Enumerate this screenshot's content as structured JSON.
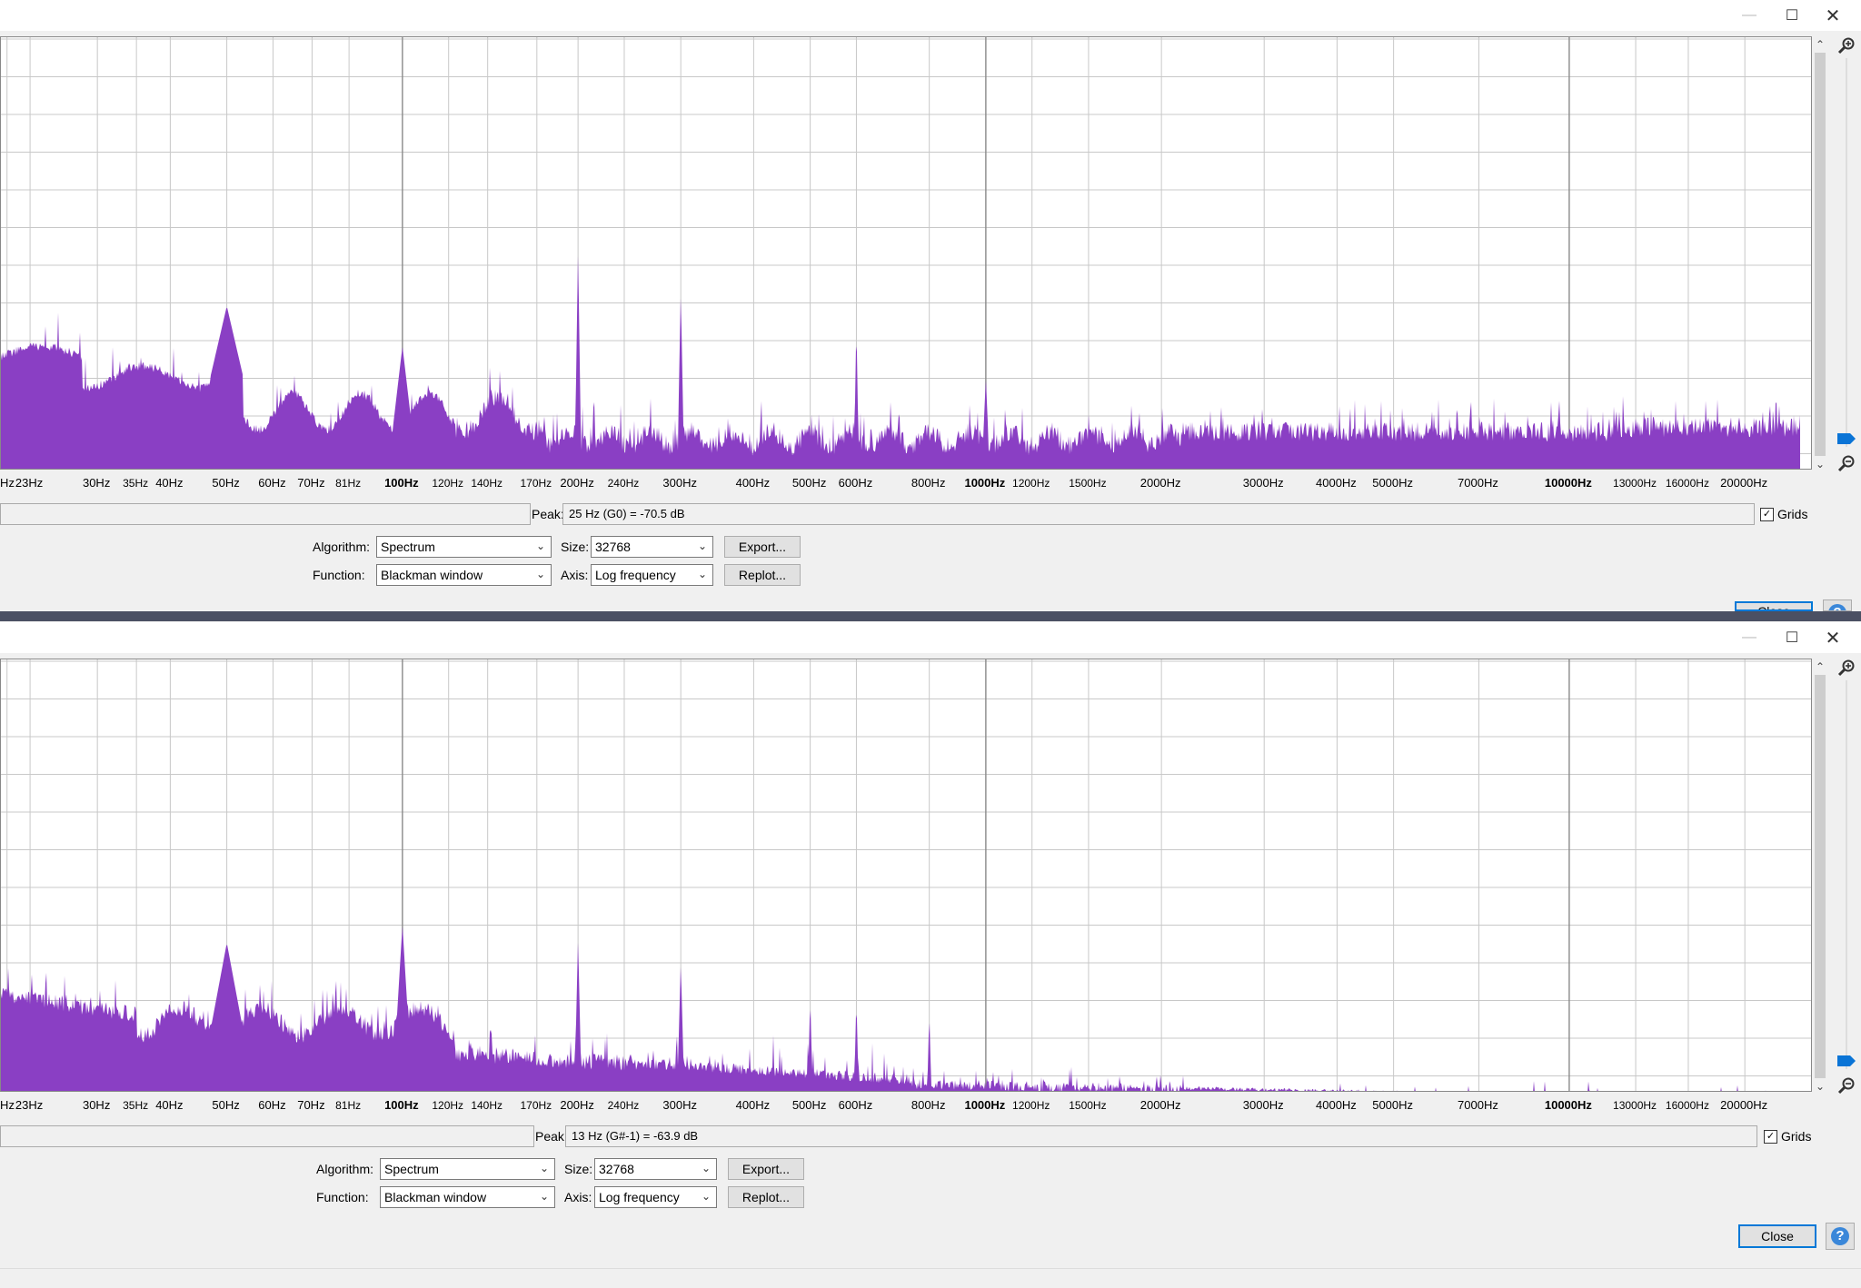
{
  "window": {
    "min_icon": "minimize-icon",
    "max_icon": "maximize-icon",
    "close_icon": "close-icon"
  },
  "colors": {
    "spectrum": "#8a3fc4",
    "accent": "#0078d7",
    "divider": "#4b5063"
  },
  "x_axis": {
    "ticks": [
      "Hz",
      "23Hz",
      "30Hz",
      "35Hz",
      "40Hz",
      "50Hz",
      "60Hz",
      "70Hz",
      "81Hz",
      "100Hz",
      "120Hz",
      "140Hz",
      "170Hz",
      "200Hz",
      "240Hz",
      "300Hz",
      "400Hz",
      "500Hz",
      "600Hz",
      "800Hz",
      "1000Hz",
      "1200Hz",
      "1500Hz",
      "2000Hz",
      "3000Hz",
      "4000Hz",
      "5000Hz",
      "7000Hz",
      "10000Hz",
      "13000Hz",
      "16000Hz",
      "20000Hz"
    ]
  },
  "top": {
    "peak_label": "Peak:",
    "peak_value": "25 Hz (G0) = -70.5 dB",
    "grids_label": "Grids",
    "grids_checked": true,
    "algorithm_label": "Algorithm:",
    "algorithm_value": "Spectrum",
    "size_label": "Size:",
    "size_value": "32768",
    "function_label": "Function:",
    "function_value": "Blackman window",
    "axis_label": "Axis:",
    "axis_value": "Log frequency",
    "export_label": "Export...",
    "replot_label": "Replot...",
    "close_label": "Close"
  },
  "bottom": {
    "peak_label": "Peak:",
    "peak_value": "13 Hz (G#-1) = -63.9 dB",
    "grids_label": "Grids",
    "grids_checked": true,
    "algorithm_label": "Algorithm:",
    "algorithm_value": "Spectrum",
    "size_label": "Size:",
    "size_value": "32768",
    "function_label": "Function:",
    "function_value": "Blackman window",
    "axis_label": "Axis:",
    "axis_value": "Log frequency",
    "export_label": "Export...",
    "replot_label": "Replot...",
    "close_label": "Close",
    "help_label": "?"
  }
}
